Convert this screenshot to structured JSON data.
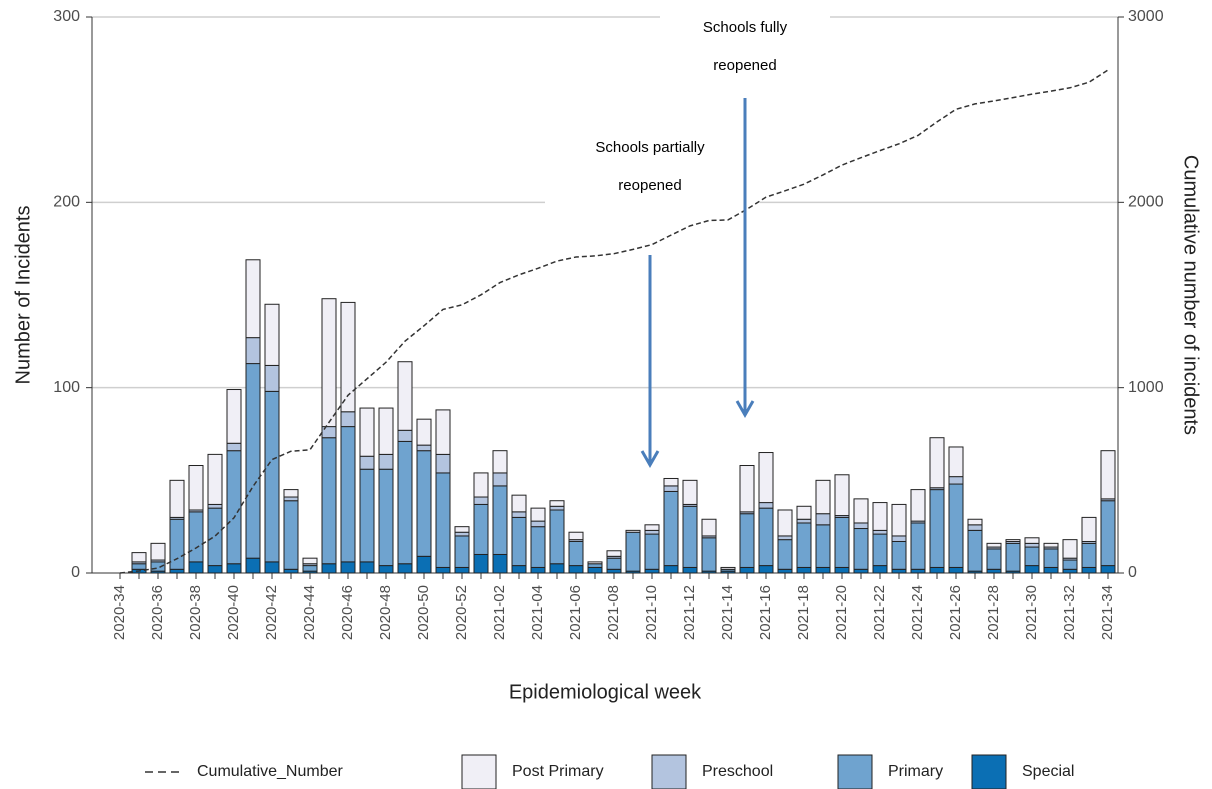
{
  "chart_data": {
    "type": "bar",
    "stacked": true,
    "x_label": "Epidemiological week",
    "y_label": "Number of Incidents",
    "y2_label": "Cumulative number of incidents",
    "categories": [
      "2020-34",
      null,
      "2020-36",
      null,
      "2020-38",
      null,
      "2020-40",
      null,
      "2020-42",
      null,
      "2020-44",
      null,
      "2020-46",
      null,
      "2020-48",
      null,
      "2020-50",
      null,
      "2020-52",
      null,
      "2021-02",
      null,
      "2021-04",
      null,
      "2021-06",
      null,
      "2021-08",
      null,
      "2021-10",
      null,
      "2021-12",
      null,
      "2021-14",
      null,
      "2021-16",
      null,
      "2021-18",
      null,
      "2021-20",
      null,
      "2021-22",
      null,
      "2021-24",
      null,
      "2021-26",
      null,
      "2021-28",
      null,
      "2021-30",
      null,
      "2021-32",
      null,
      "2021-34"
    ],
    "series": [
      {
        "name": "Cumulative_Number",
        "type": "line",
        "axis": "y2",
        "color": "#333333",
        "dashed": true,
        "values": [
          0,
          11,
          27,
          77,
          135,
          199,
          298,
          467,
          612,
          657,
          665,
          813,
          959,
          1048,
          1137,
          1251,
          1334,
          1422,
          1447,
          1501,
          1567,
          1609,
          1644,
          1683,
          1705,
          1711,
          1723,
          1746,
          1772,
          1823,
          1873,
          1902,
          1905,
          1963,
          2028,
          2062,
          2098,
          2148,
          2201,
          2241,
          2279,
          2316,
          2361,
          2434,
          2502,
          2531,
          2547,
          2565,
          2584,
          2600,
          2618,
          2648,
          2714
        ]
      },
      {
        "name": "Post Primary",
        "color": "#f0eff6",
        "values": [
          0,
          5,
          9,
          20,
          24,
          27,
          29,
          42,
          33,
          4,
          3,
          69,
          59,
          26,
          25,
          37,
          14,
          24,
          3,
          13,
          12,
          9,
          7,
          3,
          4,
          1,
          3,
          1,
          3,
          4,
          13,
          9,
          1,
          25,
          27,
          14,
          7,
          18,
          22,
          13,
          15,
          17,
          17,
          27,
          16,
          3,
          2,
          1,
          3,
          2,
          10,
          13,
          26
        ]
      },
      {
        "name": "Preschool",
        "color": "#b3c4df",
        "values": [
          0,
          1,
          1,
          1,
          1,
          2,
          4,
          14,
          14,
          2,
          1,
          6,
          8,
          7,
          8,
          6,
          3,
          10,
          2,
          4,
          7,
          3,
          3,
          2,
          1,
          0,
          1,
          0,
          2,
          3,
          1,
          1,
          0,
          1,
          3,
          2,
          2,
          6,
          1,
          3,
          2,
          3,
          1,
          1,
          4,
          3,
          1,
          1,
          2,
          1,
          1,
          1,
          1
        ]
      },
      {
        "name": "Primary",
        "color": "#6fa3cf",
        "values": [
          0,
          3,
          5,
          27,
          27,
          31,
          61,
          105,
          92,
          37,
          3,
          68,
          73,
          50,
          52,
          66,
          57,
          51,
          17,
          27,
          37,
          26,
          22,
          29,
          13,
          2,
          6,
          21,
          19,
          40,
          33,
          18,
          1,
          29,
          31,
          16,
          24,
          23,
          27,
          22,
          17,
          15,
          25,
          42,
          45,
          22,
          11,
          15,
          10,
          10,
          5,
          13,
          35
        ]
      },
      {
        "name": "Special",
        "color": "#0b6fb4",
        "values": [
          0,
          2,
          1,
          2,
          6,
          4,
          5,
          8,
          6,
          2,
          1,
          5,
          6,
          6,
          4,
          5,
          9,
          3,
          3,
          10,
          10,
          4,
          3,
          5,
          4,
          3,
          2,
          1,
          2,
          4,
          3,
          1,
          1,
          3,
          4,
          2,
          3,
          3,
          3,
          2,
          4,
          2,
          2,
          3,
          3,
          1,
          2,
          1,
          4,
          3,
          2,
          3,
          4
        ]
      }
    ],
    "ylim": [
      0,
      300
    ],
    "yticks": [
      0,
      100,
      200,
      300
    ],
    "y2lim": [
      0,
      3000
    ],
    "y2ticks": [
      0,
      1000,
      2000,
      3000
    ],
    "grid": true,
    "legend": "bottom",
    "annotations": [
      {
        "lines": [
          "Schools partially",
          "reopened"
        ]
      },
      {
        "lines": [
          "Schools fully",
          "reopened"
        ]
      }
    ]
  }
}
